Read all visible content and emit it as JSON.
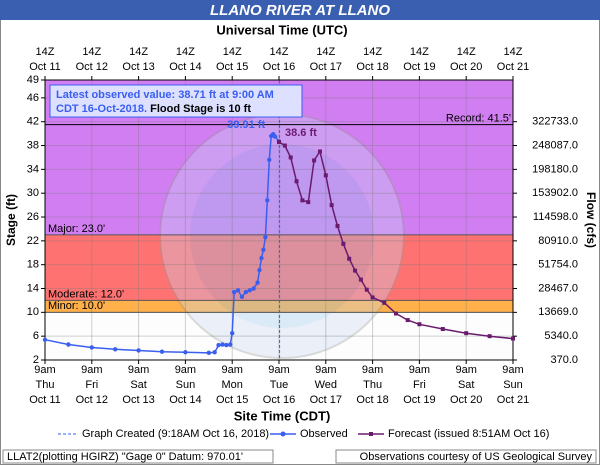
{
  "header": {
    "title": "LLANO RIVER AT LLANO"
  },
  "chart_data": {
    "type": "hydrograph",
    "top_axis_title": "Universal Time (UTC)",
    "xlabel": "Site Time (CDT)",
    "ylabel": "Stage (ft)",
    "y2label": "Flow (cfs)",
    "xlim": [
      "2018-10-11T09:00",
      "2018-10-21T09:00"
    ],
    "xticks": [
      "2018-10-11T09:00",
      "2018-10-12T09:00",
      "2018-10-13T09:00",
      "2018-10-14T09:00",
      "2018-10-15T09:00",
      "2018-10-16T09:00",
      "2018-10-17T09:00",
      "2018-10-18T09:00",
      "2018-10-19T09:00",
      "2018-10-20T09:00",
      "2018-10-21T09:00"
    ],
    "xtick_labels": [
      {
        "hour": "9am",
        "day": "Thu",
        "date": "Oct 11"
      },
      {
        "hour": "9am",
        "day": "Fri",
        "date": "Oct 12"
      },
      {
        "hour": "9am",
        "day": "Sat",
        "date": "Oct 13"
      },
      {
        "hour": "9am",
        "day": "Sun",
        "date": "Oct 14"
      },
      {
        "hour": "9am",
        "day": "Mon",
        "date": "Oct 15"
      },
      {
        "hour": "9am",
        "day": "Tue",
        "date": "Oct 16"
      },
      {
        "hour": "9am",
        "day": "Wed",
        "date": "Oct 17"
      },
      {
        "hour": "9am",
        "day": "Thu",
        "date": "Oct 18"
      },
      {
        "hour": "9am",
        "day": "Fri",
        "date": "Oct 19"
      },
      {
        "hour": "9am",
        "day": "Sat",
        "date": "Oct 20"
      },
      {
        "hour": "9am",
        "day": "Sun",
        "date": "Oct 21"
      }
    ],
    "top_xtick_labels": [
      {
        "hour": "14Z",
        "date": "Oct 11"
      },
      {
        "hour": "14Z",
        "date": "Oct 12"
      },
      {
        "hour": "14Z",
        "date": "Oct 13"
      },
      {
        "hour": "14Z",
        "date": "Oct 14"
      },
      {
        "hour": "14Z",
        "date": "Oct 15"
      },
      {
        "hour": "14Z",
        "date": "Oct 16"
      },
      {
        "hour": "14Z",
        "date": "Oct 17"
      },
      {
        "hour": "14Z",
        "date": "Oct 18"
      },
      {
        "hour": "14Z",
        "date": "Oct 19"
      },
      {
        "hour": "14Z",
        "date": "Oct 20"
      },
      {
        "hour": "14Z",
        "date": "Oct 21"
      }
    ],
    "ylim": [
      2,
      49
    ],
    "yticks": [
      2,
      6,
      10,
      14,
      18,
      22,
      26,
      30,
      34,
      38,
      42,
      46,
      49
    ],
    "y2ticks": [
      {
        "value": 370,
        "label": "370.0"
      },
      {
        "value": 5340,
        "label": "5340.0"
      },
      {
        "value": 13669,
        "label": "13669.0"
      },
      {
        "value": 28467,
        "label": "28467.0"
      },
      {
        "value": 51754,
        "label": "51754.0"
      },
      {
        "value": 80910,
        "label": "80910.0"
      },
      {
        "value": 114598,
        "label": "114598.0"
      },
      {
        "value": 153902,
        "label": "153902.0"
      },
      {
        "value": 198180,
        "label": "198180.0"
      },
      {
        "value": 248087,
        "label": "248087.0"
      },
      {
        "value": 322733,
        "label": "322733.0"
      }
    ],
    "grid": true,
    "thresholds": [
      {
        "label": "Minor: 10.0'",
        "value": 10,
        "color": "#ffb04a"
      },
      {
        "label": "Moderate: 12.0'",
        "value": 12,
        "color": "#ff7272"
      },
      {
        "label": "Major: 23.0'",
        "value": 23,
        "color": "#d17ef2"
      },
      {
        "label": "Record: 41.5'",
        "value": 41.5
      }
    ],
    "series": [
      {
        "name": "Observed",
        "color": "#3a5ff0",
        "x": [
          "2018-10-11T09:00",
          "2018-10-11T21:00",
          "2018-10-12T09:00",
          "2018-10-12T21:00",
          "2018-10-13T09:00",
          "2018-10-13T21:00",
          "2018-10-14T09:00",
          "2018-10-14T21:00",
          "2018-10-15T00:00",
          "2018-10-15T02:00",
          "2018-10-15T04:00",
          "2018-10-15T06:00",
          "2018-10-15T08:00",
          "2018-10-15T09:00",
          "2018-10-15T10:00",
          "2018-10-15T12:00",
          "2018-10-15T14:00",
          "2018-10-15T16:00",
          "2018-10-15T18:00",
          "2018-10-15T20:00",
          "2018-10-15T22:00",
          "2018-10-15T23:00",
          "2018-10-16T00:00",
          "2018-10-16T01:00",
          "2018-10-16T02:00",
          "2018-10-16T03:00",
          "2018-10-16T04:00",
          "2018-10-16T05:00",
          "2018-10-16T06:00",
          "2018-10-16T07:00",
          "2018-10-16T09:00"
        ],
        "values": [
          5.4,
          4.6,
          4.1,
          3.8,
          3.6,
          3.4,
          3.3,
          3.2,
          3.3,
          4.5,
          4.6,
          4.5,
          4.6,
          6.5,
          13.4,
          13.7,
          12.6,
          13.4,
          13.7,
          14.0,
          15.0,
          17.1,
          19.1,
          20.5,
          22.6,
          28.8,
          35.6,
          39.6,
          39.91,
          39.5,
          38.71
        ],
        "value_labels": [
          null,
          null,
          null,
          null,
          null,
          null,
          null,
          null,
          null,
          null,
          null,
          null,
          null,
          null,
          null,
          null,
          null,
          null,
          null,
          null,
          null,
          null,
          null,
          null,
          null,
          null,
          null,
          null,
          "39.91 ft",
          null,
          null
        ]
      },
      {
        "name": "Forecast (issued 8:51AM Oct 16)",
        "color": "#6a1b6e",
        "x": [
          "2018-10-16T09:00",
          "2018-10-16T12:00",
          "2018-10-16T15:00",
          "2018-10-16T18:00",
          "2018-10-16T21:00",
          "2018-10-17T00:00",
          "2018-10-17T03:00",
          "2018-10-17T06:00",
          "2018-10-17T09:00",
          "2018-10-17T12:00",
          "2018-10-17T15:00",
          "2018-10-17T18:00",
          "2018-10-17T21:00",
          "2018-10-18T00:00",
          "2018-10-18T03:00",
          "2018-10-18T06:00",
          "2018-10-18T09:00",
          "2018-10-18T15:00",
          "2018-10-18T21:00",
          "2018-10-19T03:00",
          "2018-10-19T09:00",
          "2018-10-19T21:00",
          "2018-10-20T09:00",
          "2018-10-20T21:00",
          "2018-10-21T09:00"
        ],
        "values": [
          38.6,
          38.0,
          36.0,
          32.0,
          28.8,
          28.5,
          35.5,
          37.0,
          33.0,
          28.0,
          24.5,
          21.5,
          19.0,
          17.0,
          15.5,
          13.8,
          12.5,
          11.6,
          9.8,
          8.7,
          8.0,
          7.2,
          6.5,
          6.0,
          5.6
        ],
        "value_labels": [
          "38.6 ft",
          null,
          null,
          null,
          null,
          null,
          null,
          null,
          null,
          null,
          null,
          null,
          null,
          null,
          null,
          null,
          null,
          null,
          null,
          null,
          null,
          null,
          null,
          null,
          null
        ]
      }
    ],
    "created": {
      "label": "Graph Created (9:18AM Oct 16, 2018)",
      "x": "2018-10-16T09:18"
    },
    "info": {
      "line1": "Latest observed value: 38.71 ft at 9:00 AM",
      "line2": "CDT 16-Oct-2018.",
      "flood_stage": "Flood Stage is 10 ft"
    }
  },
  "footer": {
    "left": "LLAT2(plotting HGIRZ) \"Gage 0\" Datum: 970.01'",
    "right": "Observations courtesy of US Geological Survey"
  }
}
